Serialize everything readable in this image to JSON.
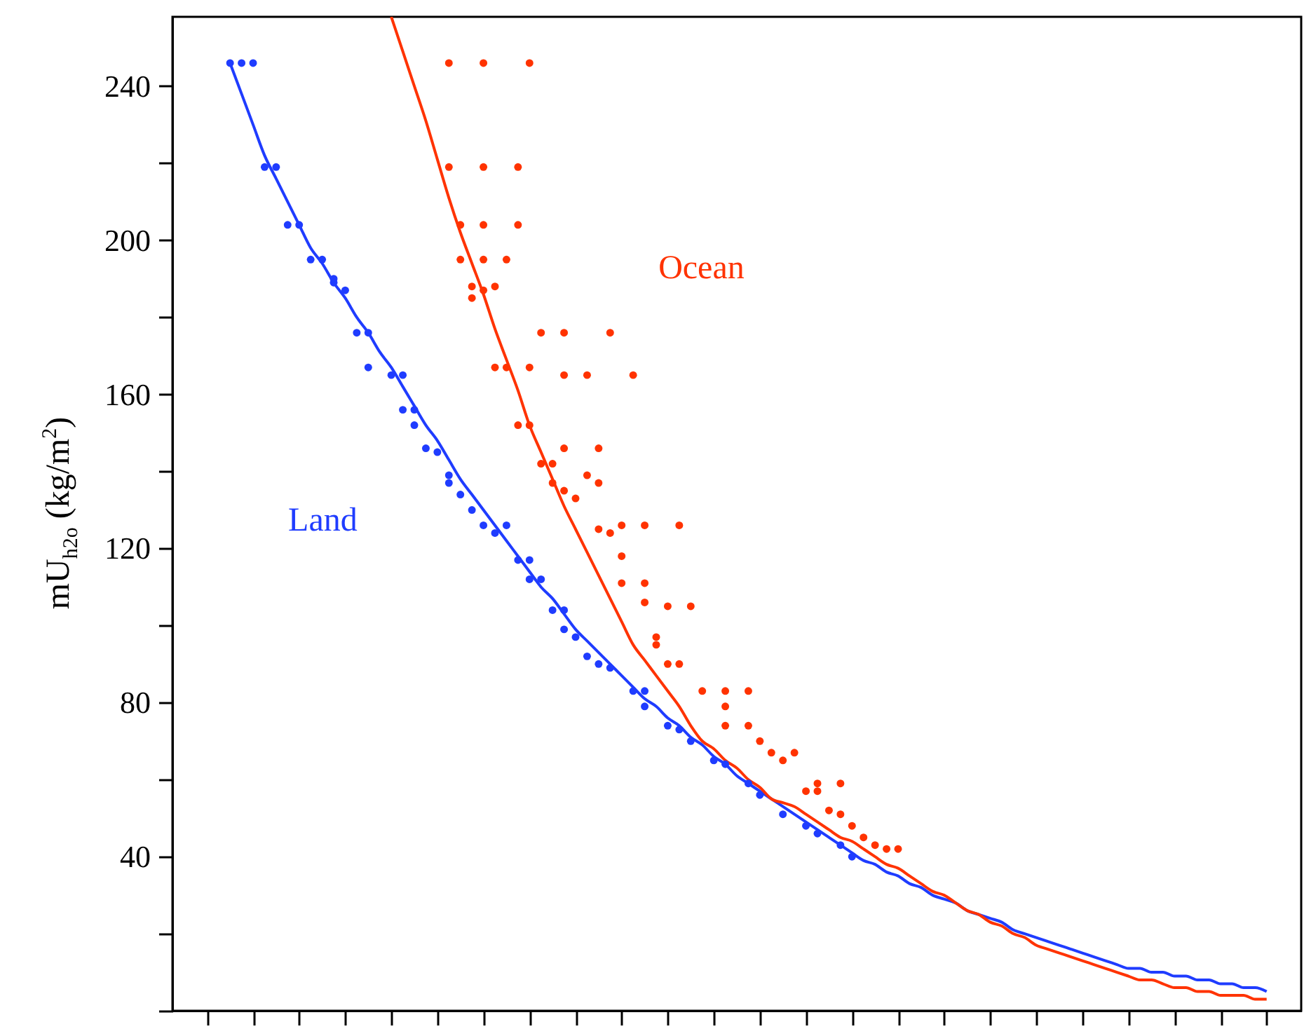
{
  "chart_data": {
    "type": "scatter",
    "ylabel": "mU$_{h2o}$ (kg/m$^{2}$)",
    "tick_labels": "y",
    "categories": [
      null,
      null,
      null,
      null,
      null,
      null,
      null,
      null,
      null,
      null,
      null,
      null,
      null,
      null,
      null,
      null,
      null,
      null,
      null,
      null,
      null,
      null,
      null,
      null,
      null,
      null,
      null,
      null,
      null,
      null,
      null,
      null,
      null,
      null,
      null,
      null,
      null,
      null,
      null,
      null,
      null,
      null,
      null,
      null,
      null,
      null,
      null,
      null,
      null,
      null,
      null,
      null,
      null,
      null,
      null,
      null,
      null,
      null,
      null,
      null,
      null,
      null,
      null,
      null,
      null,
      null,
      null,
      null,
      null,
      null,
      null,
      null,
      null,
      null,
      null,
      null,
      null,
      null,
      null,
      null,
      null,
      null,
      null,
      null,
      null,
      null,
      null,
      null,
      null,
      null,
      null,
      null,
      null,
      null,
      null,
      null,
      null,
      null,
      null
    ],
    "ylim": [
      0,
      258
    ],
    "yticks": [
      {
        "value": 0,
        "label": null
      },
      {
        "value": 20,
        "label": null
      },
      40,
      {
        "value": 60,
        "label": null
      },
      80,
      {
        "value": 100,
        "label": null
      },
      120,
      {
        "value": 140,
        "label": null
      },
      160,
      {
        "value": 180,
        "label": null
      },
      200,
      {
        "value": 220,
        "label": null
      },
      240
    ],
    "marker": "circle",
    "series": [
      {
        "name": "Land",
        "color": "#1f3cff",
        "values": [
          null,
          null,
          null,
          null,
          null,
          246,
          246,
          246,
          219,
          219,
          204,
          204,
          195,
          195,
          190,
          187,
          176,
          167,
          null,
          165,
          165,
          156,
          146,
          145,
          139,
          134,
          130,
          126,
          124,
          126,
          117,
          117,
          112,
          104,
          104,
          97,
          92,
          90,
          89,
          null,
          83,
          83,
          null,
          74,
          73,
          70,
          null,
          65,
          64,
          null,
          59,
          56,
          null,
          51,
          null,
          48,
          46,
          null,
          43,
          40,
          null,
          null,
          null,
          null,
          null,
          null,
          null,
          null,
          null,
          null,
          null,
          null,
          null,
          null,
          null,
          null,
          null,
          null,
          null,
          null,
          null,
          null,
          null,
          null,
          null,
          null,
          null,
          null,
          null,
          null,
          null,
          null,
          null,
          null,
          null,
          null,
          null,
          null,
          null
        ]
      },
      {
        "color": "#1f3cff",
        "values": [
          null,
          null,
          null,
          null,
          null,
          null,
          null,
          null,
          null,
          null,
          null,
          null,
          null,
          null,
          189,
          null,
          null,
          176,
          null,
          null,
          156,
          152,
          null,
          null,
          137,
          null,
          null,
          null,
          null,
          null,
          null,
          112,
          null,
          null,
          99,
          null,
          null,
          null,
          null,
          null,
          null,
          79,
          null,
          null,
          null,
          null,
          null,
          null,
          null,
          null,
          null,
          null,
          null,
          null,
          null,
          null,
          null,
          null,
          null,
          null,
          null,
          null,
          null,
          null,
          null,
          null,
          null,
          null,
          null,
          null,
          null,
          null,
          null,
          null,
          null,
          null,
          null,
          null,
          null,
          null,
          null,
          null,
          null,
          null,
          null,
          null,
          null,
          null,
          null,
          null,
          null,
          null,
          null,
          null,
          null,
          null,
          null,
          null,
          null
        ]
      },
      {
        "type": "line",
        "marker": "none",
        "color": "#1f3cff",
        "values": [
          null,
          null,
          null,
          null,
          null,
          246,
          238,
          230,
          222,
          216,
          210,
          204,
          198,
          194,
          189,
          185,
          180,
          176,
          171,
          167,
          162,
          157,
          152,
          148,
          143,
          138,
          134,
          130,
          126,
          122,
          118,
          114,
          110,
          107,
          103,
          99,
          96,
          93,
          90,
          87,
          84,
          81,
          79,
          76,
          74,
          71,
          69,
          66,
          64,
          61,
          59,
          57,
          55,
          53,
          51,
          49,
          47,
          45,
          43,
          41,
          39,
          38,
          36,
          35,
          33,
          32,
          30,
          29,
          28,
          26,
          25,
          24,
          23,
          21,
          20,
          19,
          18,
          17,
          16,
          15,
          14,
          13,
          12,
          11,
          11,
          10,
          10,
          9,
          9,
          8,
          8,
          7,
          7,
          6,
          6,
          5,
          null,
          null,
          null
        ]
      },
      {
        "name": "Ocean",
        "color": "#ff3300",
        "values": [
          null,
          null,
          null,
          null,
          null,
          null,
          null,
          null,
          null,
          null,
          null,
          null,
          null,
          null,
          null,
          null,
          null,
          null,
          null,
          null,
          null,
          null,
          null,
          null,
          246,
          204,
          188,
          246,
          188,
          195,
          219,
          246,
          176,
          142,
          176,
          133,
          165,
          146,
          176,
          126,
          165,
          126,
          97,
          105,
          126,
          105,
          83,
          null,
          83,
          null,
          83,
          70,
          67,
          65,
          67,
          57,
          57,
          52,
          59,
          48,
          45,
          43,
          42,
          42,
          null,
          null,
          null,
          null,
          null,
          null,
          null,
          null,
          null,
          null,
          null,
          null,
          null,
          null,
          null,
          null,
          null,
          null,
          null,
          null,
          null,
          null,
          null,
          null,
          null,
          null,
          null,
          null,
          null,
          null,
          null,
          null,
          null,
          null,
          null
        ]
      },
      {
        "color": "#ff3300",
        "values": [
          null,
          null,
          null,
          null,
          null,
          null,
          null,
          null,
          null,
          null,
          null,
          null,
          null,
          null,
          null,
          null,
          null,
          null,
          null,
          null,
          null,
          null,
          null,
          null,
          219,
          195,
          185,
          219,
          167,
          167,
          204,
          167,
          142,
          137,
          165,
          null,
          139,
          137,
          124,
          118,
          null,
          111,
          95,
          90,
          90,
          null,
          null,
          null,
          79,
          null,
          74,
          null,
          null,
          null,
          null,
          null,
          59,
          null,
          51,
          null,
          null,
          null,
          null,
          null,
          null,
          null,
          null,
          null,
          null,
          null,
          null,
          null,
          null,
          null,
          null,
          null,
          null,
          null,
          null,
          null,
          null,
          null,
          null,
          null,
          null,
          null,
          null,
          null,
          null,
          null,
          null,
          null,
          null,
          null,
          null,
          null,
          null,
          null,
          null
        ]
      },
      {
        "color": "#ff3300",
        "values": [
          null,
          null,
          null,
          null,
          null,
          null,
          null,
          null,
          null,
          null,
          null,
          null,
          null,
          null,
          null,
          null,
          null,
          null,
          null,
          null,
          null,
          null,
          null,
          null,
          null,
          null,
          null,
          204,
          null,
          null,
          152,
          152,
          null,
          null,
          135,
          null,
          null,
          125,
          null,
          111,
          null,
          106,
          null,
          null,
          null,
          null,
          null,
          null,
          74,
          null,
          null,
          null,
          null,
          null,
          null,
          null,
          null,
          null,
          null,
          null,
          null,
          null,
          null,
          null,
          null,
          null,
          null,
          null,
          null,
          null,
          null,
          null,
          null,
          null,
          null,
          null,
          null,
          null,
          null,
          null,
          null,
          null,
          null,
          null,
          null,
          null,
          null,
          null,
          null,
          null,
          null,
          null,
          null,
          null,
          null,
          null,
          null,
          null,
          null
        ]
      },
      {
        "color": "#ff3300",
        "values": [
          null,
          null,
          null,
          null,
          null,
          null,
          null,
          null,
          null,
          null,
          null,
          null,
          null,
          null,
          null,
          null,
          null,
          null,
          null,
          null,
          null,
          null,
          null,
          null,
          null,
          null,
          null,
          195,
          null,
          null,
          null,
          null,
          null,
          null,
          146,
          null,
          null,
          null,
          null,
          null,
          null,
          null,
          null,
          null,
          null,
          null,
          null,
          null,
          null,
          null,
          null,
          null,
          null,
          null,
          null,
          null,
          null,
          null,
          null,
          null,
          null,
          null,
          null,
          null,
          null,
          null,
          null,
          null,
          null,
          null,
          null,
          null,
          null,
          null,
          null,
          null,
          null,
          null,
          null,
          null,
          null,
          null,
          null,
          null,
          null,
          null,
          null,
          null,
          null,
          null,
          null,
          null,
          null,
          null,
          null,
          null,
          null,
          null,
          null
        ]
      },
      {
        "color": "#ff3300",
        "values": [
          null,
          null,
          null,
          null,
          null,
          null,
          null,
          null,
          null,
          null,
          null,
          null,
          null,
          null,
          null,
          null,
          null,
          null,
          null,
          null,
          null,
          null,
          null,
          null,
          null,
          null,
          null,
          187,
          null,
          null,
          null,
          null,
          null,
          null,
          null,
          null,
          null,
          null,
          null,
          null,
          null,
          null,
          null,
          null,
          null,
          null,
          null,
          null,
          null,
          null,
          null,
          null,
          null,
          null,
          null,
          null,
          null,
          null,
          null,
          null,
          null,
          null,
          null,
          null,
          null,
          null,
          null,
          null,
          null,
          null,
          null,
          null,
          null,
          null,
          null,
          null,
          null,
          null,
          null,
          null,
          null,
          null,
          null,
          null,
          null,
          null,
          null,
          null,
          null,
          null,
          null,
          null,
          null,
          null,
          null,
          null,
          null,
          null,
          null
        ]
      },
      {
        "type": "line",
        "marker": "none",
        "color": "#ff3300",
        "values": [
          null,
          null,
          null,
          null,
          null,
          null,
          null,
          null,
          null,
          null,
          null,
          null,
          null,
          null,
          null,
          null,
          null,
          null,
          null,
          258,
          249,
          240,
          231,
          221,
          211,
          202,
          194,
          186,
          177,
          169,
          161,
          152,
          145,
          138,
          131,
          125,
          119,
          113,
          107,
          101,
          95,
          91,
          87,
          83,
          79,
          74,
          70,
          68,
          65,
          63,
          60,
          58,
          55,
          54,
          53,
          51,
          49,
          47,
          45,
          44,
          42,
          40,
          38,
          37,
          35,
          33,
          31,
          30,
          28,
          26,
          25,
          23,
          22,
          20,
          19,
          17,
          16,
          15,
          14,
          13,
          12,
          11,
          10,
          9,
          8,
          8,
          7,
          6,
          6,
          5,
          5,
          4,
          4,
          4,
          3,
          3,
          null,
          null,
          null
        ]
      }
    ]
  }
}
